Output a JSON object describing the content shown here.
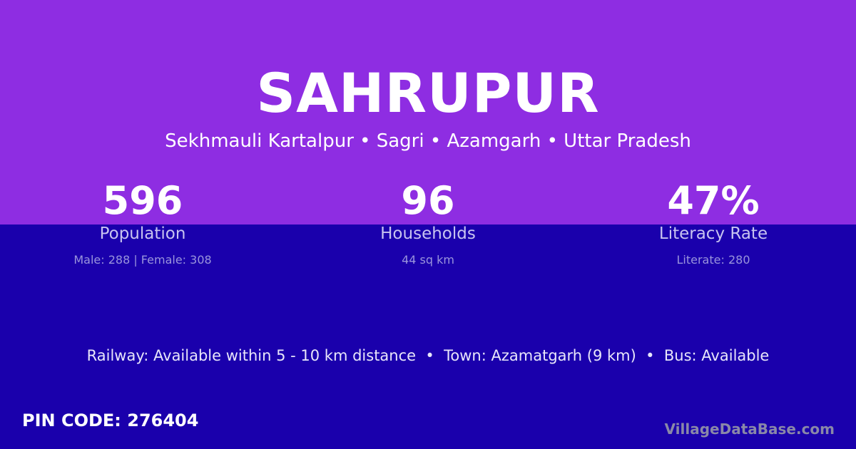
{
  "colors": {
    "top_bg": "#8e2de2",
    "bottom_bg": "#1a00ac"
  },
  "title": "SAHRUPUR",
  "subtitle": "Sekhmauli Kartalpur • Sagri • Azamgarh • Uttar Pradesh",
  "stats": [
    {
      "value": "596",
      "label": "Population",
      "detail": "Male: 288 | Female: 308"
    },
    {
      "value": "96",
      "label": "Households",
      "detail": "44 sq km"
    },
    {
      "value": "47%",
      "label": "Literacy Rate",
      "detail": "Literate: 280"
    }
  ],
  "facts": "Railway: Available within 5 - 10 km distance  •  Town: Azamatgarh (9 km)  •  Bus: Available",
  "pin": "PIN CODE: 276404",
  "brand": "VillageDataBase.com"
}
